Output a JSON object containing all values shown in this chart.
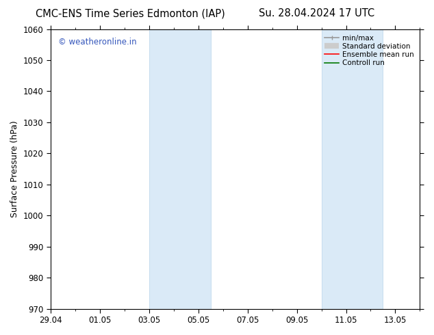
{
  "title_left": "CMC-ENS Time Series Edmonton (IAP)",
  "title_right": "Su. 28.04.2024 17 UTC",
  "ylabel": "Surface Pressure (hPa)",
  "ylim": [
    970,
    1060
  ],
  "yticks": [
    970,
    980,
    990,
    1000,
    1010,
    1020,
    1030,
    1040,
    1050,
    1060
  ],
  "xlim": [
    0,
    15
  ],
  "xtick_labels": [
    "29.04",
    "01.05",
    "03.05",
    "05.05",
    "07.05",
    "09.05",
    "11.05",
    "13.05"
  ],
  "xtick_positions": [
    0,
    2,
    4,
    6,
    8,
    10,
    12,
    14
  ],
  "shaded_bands": [
    {
      "x_start": 4.0,
      "x_end": 6.5
    },
    {
      "x_start": 11.0,
      "x_end": 13.5
    }
  ],
  "shaded_color": "#daeaf7",
  "shaded_edge_color": "#b8d4ea",
  "background_color": "#ffffff",
  "watermark_text": "© weatheronline.in",
  "watermark_color": "#3355bb",
  "legend_items": [
    {
      "label": "min/max",
      "color": "#999999",
      "lw": 1.2
    },
    {
      "label": "Standard deviation",
      "color": "#cccccc",
      "lw": 6
    },
    {
      "label": "Ensemble mean run",
      "color": "#ff0000",
      "lw": 1.2
    },
    {
      "label": "Controll run",
      "color": "#007700",
      "lw": 1.2
    }
  ],
  "tick_font_size": 8.5,
  "label_font_size": 9,
  "title_font_size": 10.5,
  "border_color": "#000000"
}
